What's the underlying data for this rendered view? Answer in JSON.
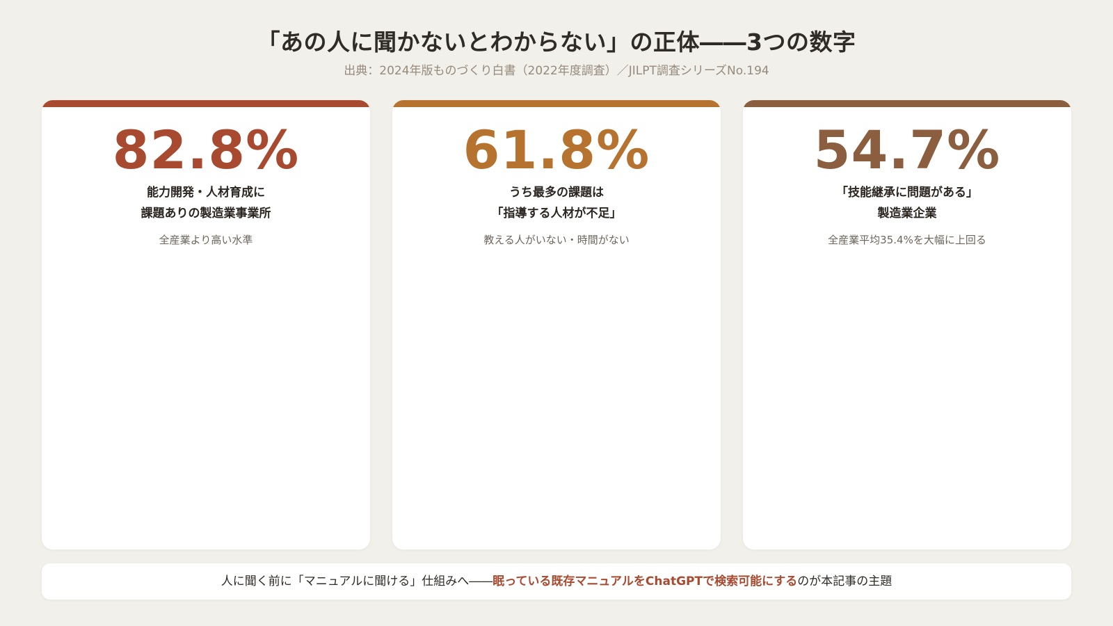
{
  "header": {
    "title": "「あの人に聞かないとわからない」の正体――3つの数字",
    "source": "出典：2024年版ものづくり白書（2022年度調査）／JILPT調査シリーズNo.194"
  },
  "cards": [
    {
      "value": "82.8%",
      "label_line1": "能力開発・人材育成に",
      "label_line2": "課題ありの製造業事業所",
      "note": "全産業より高い水準",
      "accent_color": "#a84a2f"
    },
    {
      "value": "61.8%",
      "label_line1": "うち最多の課題は",
      "label_line2": "「指導する人材が不足」",
      "note": "教える人がいない・時間がない",
      "accent_color": "#b5732f"
    },
    {
      "value": "54.7%",
      "label_line1": "「技能継承に問題がある」",
      "label_line2": "製造業企業",
      "note": "全産業平均35.4%を大幅に上回る",
      "accent_color": "#8b5e3f"
    }
  ],
  "footer": {
    "text_before": "人に聞く前に「マニュアルに聞ける」仕組みへ――",
    "highlight": "眠っている既存マニュアルをChatGPTで検索可能にする",
    "text_after": "のが本記事の主題",
    "highlight_color": "#a84a2f"
  }
}
